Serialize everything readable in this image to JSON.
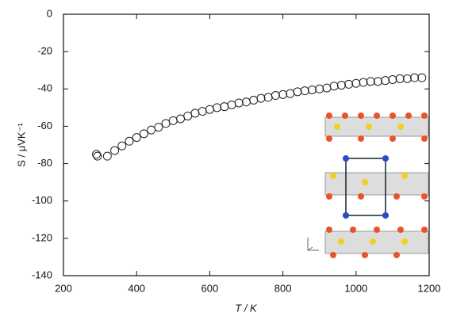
{
  "chart_data": {
    "type": "scatter",
    "x_label": "T / K",
    "y_label": "S / μVK⁻¹",
    "x": [
      290,
      293,
      320,
      340,
      360,
      380,
      400,
      420,
      440,
      460,
      480,
      500,
      520,
      540,
      560,
      580,
      600,
      620,
      640,
      660,
      680,
      700,
      720,
      740,
      760,
      780,
      800,
      820,
      840,
      860,
      880,
      900,
      920,
      940,
      960,
      980,
      1000,
      1020,
      1040,
      1060,
      1080,
      1100,
      1120,
      1140,
      1160,
      1180
    ],
    "values": [
      -75,
      -76,
      -76,
      -73,
      -70.5,
      -68,
      -66,
      -64,
      -62,
      -60.5,
      -58.5,
      -57,
      -56,
      -54.5,
      -53,
      -52,
      -51,
      -50,
      -49.5,
      -48.5,
      -47.5,
      -47,
      -46,
      -45,
      -44.5,
      -43.5,
      -43,
      -42.5,
      -41.5,
      -41,
      -40.5,
      -40,
      -39.5,
      -38.5,
      -38,
      -37.5,
      -37,
      -36.5,
      -36,
      -36,
      -35.5,
      -35,
      -34.5,
      -34.5,
      -34,
      -34
    ],
    "color": "#222222",
    "xlim": [
      200,
      1200
    ],
    "xticks": [
      200,
      400,
      600,
      800,
      1000,
      1200
    ],
    "ylim": [
      -140,
      0
    ],
    "yticks": [
      -140,
      -120,
      -100,
      -80,
      -60,
      -40,
      -20,
      0
    ]
  }
}
